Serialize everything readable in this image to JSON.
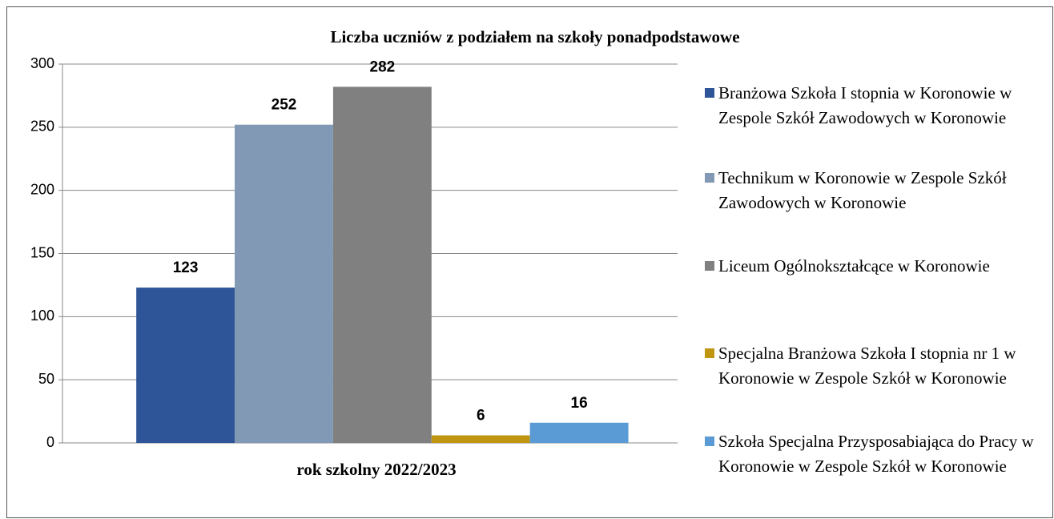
{
  "chart_data": {
    "type": "bar",
    "title": "Liczba uczniów z podziałem na szkoły ponadpodstawowe",
    "categories": [
      "rok szkolny 2022/2023"
    ],
    "series": [
      {
        "name": "Branżowa Szkoła I stopnia w Koronowie w Zespole Szkół Zawodowych w Koronowie",
        "color": "#2e5597",
        "values": [
          123
        ]
      },
      {
        "name": "Technikum w Koronowie w Zespole Szkół Zawodowych w Koronowie",
        "color": "#8199b4",
        "values": [
          252
        ]
      },
      {
        "name": "Liceum Ogólnokształcące w Koronowie",
        "color": "#808080",
        "values": [
          282
        ]
      },
      {
        "name": "Specjalna Branżowa Szkoła I stopnia nr 1 w Koronowie w Zespole Szkół w Koronowie",
        "color": "#c09512",
        "values": [
          6
        ]
      },
      {
        "name": "Szkoła Specjalna Przysposabiająca do Pracy w Koronowie w Zespole Szkół w Koronowie",
        "color": "#5b9bd5",
        "values": [
          16
        ]
      }
    ],
    "ylim": [
      0,
      300
    ],
    "yticks": [
      0,
      50,
      100,
      150,
      200,
      250,
      300
    ],
    "grid": true,
    "legend": "right"
  }
}
